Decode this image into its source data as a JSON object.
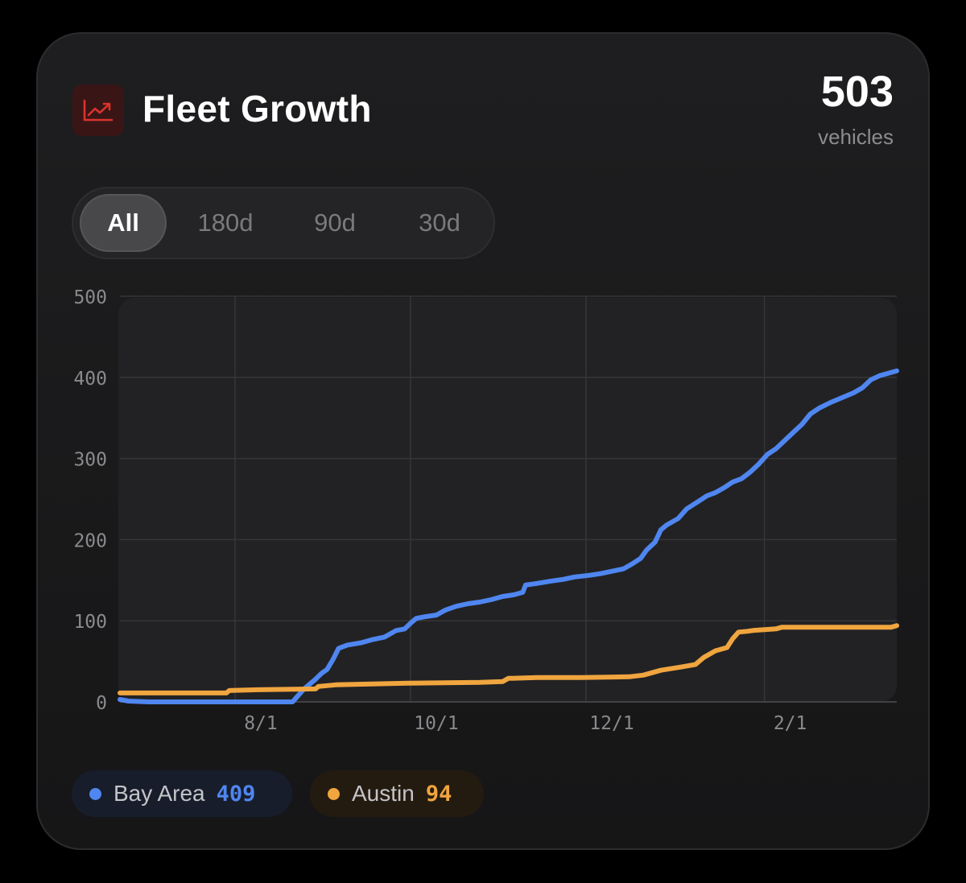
{
  "header": {
    "icon": "trending-up-icon",
    "title": "Fleet Growth",
    "count": "503",
    "count_label": "vehicles"
  },
  "range_tabs": [
    {
      "label": "All",
      "active": true
    },
    {
      "label": "180d",
      "active": false
    },
    {
      "label": "90d",
      "active": false
    },
    {
      "label": "30d",
      "active": false
    }
  ],
  "colors": {
    "bay_area": "#4f86f0",
    "austin": "#f0a53f",
    "icon_accent": "#d9342b"
  },
  "chart_data": {
    "type": "line",
    "title": "Fleet Growth",
    "xlabel": "",
    "ylabel": "",
    "ylim": [
      0,
      500
    ],
    "yticks": [
      "0",
      "100",
      "200",
      "300",
      "400",
      "500"
    ],
    "xlim": [
      0,
      270
    ],
    "xticks": [
      {
        "label": "8/1",
        "day": 40
      },
      {
        "label": "10/1",
        "day": 101
      },
      {
        "label": "12/1",
        "day": 162
      },
      {
        "label": "2/1",
        "day": 224
      }
    ],
    "grid": true,
    "series": [
      {
        "name": "Bay Area",
        "latest": "409",
        "color": "#4f86f0",
        "points": [
          [
            0,
            3
          ],
          [
            3,
            1
          ],
          [
            10,
            0
          ],
          [
            20,
            0
          ],
          [
            40,
            0
          ],
          [
            55,
            0
          ],
          [
            60,
            0
          ],
          [
            62,
            8
          ],
          [
            64,
            16
          ],
          [
            66,
            22
          ],
          [
            68,
            28
          ],
          [
            70,
            35
          ],
          [
            72,
            40
          ],
          [
            74,
            52
          ],
          [
            76,
            66
          ],
          [
            79,
            70
          ],
          [
            84,
            73
          ],
          [
            88,
            77
          ],
          [
            92,
            80
          ],
          [
            96,
            88
          ],
          [
            99,
            90
          ],
          [
            101,
            97
          ],
          [
            103,
            103
          ],
          [
            106,
            105
          ],
          [
            110,
            107
          ],
          [
            113,
            113
          ],
          [
            117,
            118
          ],
          [
            121,
            121
          ],
          [
            125,
            123
          ],
          [
            129,
            126
          ],
          [
            133,
            130
          ],
          [
            137,
            132
          ],
          [
            140,
            135
          ],
          [
            141,
            144
          ],
          [
            145,
            146
          ],
          [
            150,
            149
          ],
          [
            154,
            151
          ],
          [
            158,
            154
          ],
          [
            163,
            156
          ],
          [
            167,
            158
          ],
          [
            171,
            161
          ],
          [
            175,
            164
          ],
          [
            178,
            170
          ],
          [
            181,
            177
          ],
          [
            183,
            187
          ],
          [
            186,
            197
          ],
          [
            188,
            212
          ],
          [
            190,
            218
          ],
          [
            194,
            226
          ],
          [
            197,
            238
          ],
          [
            201,
            247
          ],
          [
            204,
            254
          ],
          [
            207,
            258
          ],
          [
            210,
            264
          ],
          [
            213,
            271
          ],
          [
            216,
            275
          ],
          [
            219,
            283
          ],
          [
            222,
            293
          ],
          [
            225,
            305
          ],
          [
            228,
            312
          ],
          [
            231,
            322
          ],
          [
            234,
            332
          ],
          [
            237,
            342
          ],
          [
            240,
            355
          ],
          [
            243,
            362
          ],
          [
            247,
            369
          ],
          [
            251,
            375
          ],
          [
            255,
            381
          ],
          [
            258,
            387
          ],
          [
            261,
            397
          ],
          [
            264,
            402
          ],
          [
            270,
            408
          ]
        ]
      },
      {
        "name": "Austin",
        "latest": "94",
        "color": "#f0a53f",
        "points": [
          [
            0,
            11
          ],
          [
            20,
            11
          ],
          [
            37,
            11
          ],
          [
            38,
            14
          ],
          [
            48,
            15
          ],
          [
            68,
            16
          ],
          [
            69,
            19
          ],
          [
            75,
            21
          ],
          [
            100,
            23
          ],
          [
            125,
            24
          ],
          [
            133,
            25
          ],
          [
            135,
            29
          ],
          [
            145,
            30
          ],
          [
            160,
            30
          ],
          [
            177,
            31
          ],
          [
            182,
            33
          ],
          [
            188,
            39
          ],
          [
            195,
            43
          ],
          [
            200,
            46
          ],
          [
            203,
            55
          ],
          [
            207,
            63
          ],
          [
            211,
            67
          ],
          [
            213,
            78
          ],
          [
            215,
            86
          ],
          [
            218,
            87
          ],
          [
            220,
            88
          ],
          [
            228,
            90
          ],
          [
            230,
            92
          ],
          [
            240,
            92
          ],
          [
            268,
            92
          ],
          [
            270,
            94
          ]
        ]
      }
    ]
  }
}
